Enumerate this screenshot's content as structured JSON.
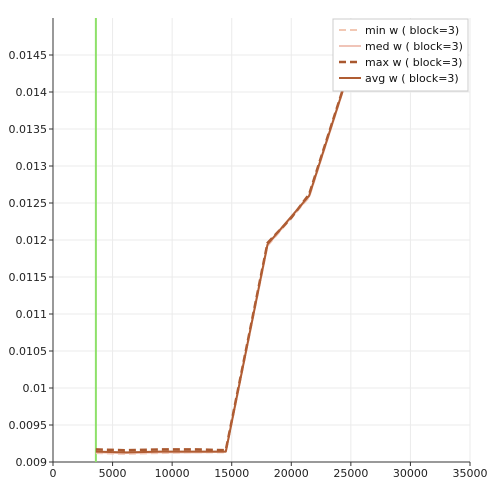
{
  "chart_data": {
    "type": "line",
    "title": "",
    "xlabel": "",
    "ylabel": "",
    "xlim": [
      0,
      35000
    ],
    "ylim": [
      0.009,
      0.015
    ],
    "grid": true,
    "legend_position": "top-right",
    "x_ticks": [
      "0",
      "5000",
      "10000",
      "15000",
      "20000",
      "25000",
      "30000",
      "35000"
    ],
    "x_tick_values": [
      0,
      5000,
      10000,
      15000,
      20000,
      25000,
      30000,
      35000
    ],
    "y_ticks": [
      "0.009",
      "0.0095",
      "0.01",
      "0.0105",
      "0.011",
      "0.0115",
      "0.012",
      "0.0125",
      "0.013",
      "0.0135",
      "0.014",
      "0.0145"
    ],
    "y_tick_values": [
      0.009,
      0.0095,
      0.01,
      0.0105,
      0.011,
      0.0115,
      0.012,
      0.0125,
      0.013,
      0.0135,
      0.014,
      0.0145
    ],
    "vertical_marker": {
      "x": 3600,
      "color": "#8ee06a"
    },
    "series": [
      {
        "name": "min w ( block=3)",
        "color": "#f2c8b4",
        "dash": "dashed",
        "width": 2,
        "x": [
          3600,
          6000,
          9000,
          12000,
          14500,
          18000,
          21500,
          24500,
          25000,
          26000
        ],
        "y": [
          0.00912,
          0.00911,
          0.00912,
          0.00913,
          0.00913,
          0.01192,
          0.01258,
          0.0141,
          0.01425,
          0.0146
        ]
      },
      {
        "name": "med w ( block=3)",
        "color": "#f0c4b8",
        "dash": "solid",
        "width": 2,
        "x": [
          3600,
          6000,
          9000,
          12000,
          14500,
          18000,
          21500,
          24500,
          25000,
          26000
        ],
        "y": [
          0.00913,
          0.00912,
          0.00913,
          0.00913,
          0.00914,
          0.01193,
          0.01259,
          0.0141,
          0.01425,
          0.0146
        ]
      },
      {
        "name": "max w ( block=3)",
        "color": "#a9582f",
        "dash": "dashed",
        "width": 2.5,
        "x": [
          3600,
          6000,
          9000,
          12000,
          14500,
          18000,
          20000,
          21500,
          24500,
          25000,
          26000
        ],
        "y": [
          0.00917,
          0.00916,
          0.00917,
          0.00917,
          0.00916,
          0.01196,
          0.0123,
          0.01262,
          0.01412,
          0.01427,
          0.01462
        ]
      },
      {
        "name": "avg w ( block=3)",
        "color": "#b05d33",
        "dash": "solid",
        "width": 2,
        "x": [
          3600,
          6000,
          9000,
          12000,
          14500,
          18000,
          21500,
          24500,
          25000,
          26000
        ],
        "y": [
          0.00914,
          0.00913,
          0.00914,
          0.00914,
          0.00914,
          0.01194,
          0.0126,
          0.01411,
          0.01426,
          0.01461
        ]
      }
    ]
  }
}
